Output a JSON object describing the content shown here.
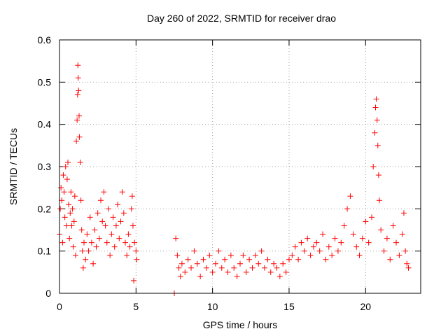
{
  "chart_data": {
    "type": "scatter",
    "title": "Day 260 of 2022, SRMTID for receiver drao",
    "xlabel": "GPS time / hours",
    "ylabel": "SRMTID / TECUs",
    "xlim": [
      0,
      23.6
    ],
    "ylim": [
      0,
      0.6
    ],
    "xticks": [
      0,
      5,
      10,
      15,
      20
    ],
    "xtick_labels": [
      "0",
      "5",
      "10",
      "15",
      "20"
    ],
    "yticks": [
      0,
      0.1,
      0.2,
      0.3,
      0.4,
      0.5,
      0.6
    ],
    "ytick_labels": [
      "0",
      "0.1",
      "0.2",
      "0.3",
      "0.4",
      "0.5",
      "0.6"
    ],
    "grid": true,
    "marker": "+",
    "marker_color": "#ff0000",
    "series": [
      {
        "name": "SRMTID",
        "points": [
          [
            0.0,
            0.14
          ],
          [
            0.05,
            0.2
          ],
          [
            0.1,
            0.25
          ],
          [
            0.15,
            0.22
          ],
          [
            0.2,
            0.12
          ],
          [
            0.25,
            0.28
          ],
          [
            0.3,
            0.24
          ],
          [
            0.35,
            0.18
          ],
          [
            0.4,
            0.3
          ],
          [
            0.45,
            0.16
          ],
          [
            0.5,
            0.27
          ],
          [
            0.55,
            0.31
          ],
          [
            0.6,
            0.21
          ],
          [
            0.65,
            0.13
          ],
          [
            0.7,
            0.19
          ],
          [
            0.75,
            0.24
          ],
          [
            0.8,
            0.16
          ],
          [
            0.85,
            0.2
          ],
          [
            0.9,
            0.11
          ],
          [
            0.95,
            0.17
          ],
          [
            1.0,
            0.23
          ],
          [
            1.05,
            0.09
          ],
          [
            1.1,
            0.36
          ],
          [
            1.15,
            0.41
          ],
          [
            1.18,
            0.47
          ],
          [
            1.2,
            0.54
          ],
          [
            1.22,
            0.51
          ],
          [
            1.25,
            0.48
          ],
          [
            1.28,
            0.42
          ],
          [
            1.3,
            0.37
          ],
          [
            1.35,
            0.31
          ],
          [
            1.4,
            0.22
          ],
          [
            1.45,
            0.15
          ],
          [
            1.5,
            0.1
          ],
          [
            1.55,
            0.06
          ],
          [
            1.6,
            0.12
          ],
          [
            1.7,
            0.08
          ],
          [
            1.8,
            0.14
          ],
          [
            1.9,
            0.1
          ],
          [
            2.0,
            0.18
          ],
          [
            2.1,
            0.12
          ],
          [
            2.2,
            0.07
          ],
          [
            2.3,
            0.15
          ],
          [
            2.4,
            0.11
          ],
          [
            2.5,
            0.19
          ],
          [
            2.6,
            0.13
          ],
          [
            2.7,
            0.22
          ],
          [
            2.8,
            0.17
          ],
          [
            2.9,
            0.24
          ],
          [
            3.0,
            0.16
          ],
          [
            3.1,
            0.12
          ],
          [
            3.2,
            0.2
          ],
          [
            3.3,
            0.09
          ],
          [
            3.4,
            0.14
          ],
          [
            3.5,
            0.18
          ],
          [
            3.6,
            0.11
          ],
          [
            3.7,
            0.16
          ],
          [
            3.8,
            0.21
          ],
          [
            3.9,
            0.13
          ],
          [
            4.0,
            0.17
          ],
          [
            4.1,
            0.24
          ],
          [
            4.2,
            0.19
          ],
          [
            4.3,
            0.12
          ],
          [
            4.4,
            0.09
          ],
          [
            4.5,
            0.14
          ],
          [
            4.6,
            0.11
          ],
          [
            4.7,
            0.2
          ],
          [
            4.75,
            0.23
          ],
          [
            4.8,
            0.16
          ],
          [
            4.85,
            0.03
          ],
          [
            4.9,
            0.12
          ],
          [
            5.0,
            0.1
          ],
          [
            5.05,
            0.08
          ],
          [
            7.5,
            0.0
          ],
          [
            7.6,
            0.13
          ],
          [
            7.7,
            0.09
          ],
          [
            7.8,
            0.06
          ],
          [
            7.9,
            0.04
          ],
          [
            8.0,
            0.07
          ],
          [
            8.2,
            0.05
          ],
          [
            8.4,
            0.08
          ],
          [
            8.6,
            0.06
          ],
          [
            8.8,
            0.1
          ],
          [
            9.0,
            0.07
          ],
          [
            9.2,
            0.04
          ],
          [
            9.4,
            0.08
          ],
          [
            9.6,
            0.06
          ],
          [
            9.8,
            0.09
          ],
          [
            10.0,
            0.05
          ],
          [
            10.2,
            0.07
          ],
          [
            10.4,
            0.1
          ],
          [
            10.6,
            0.06
          ],
          [
            10.8,
            0.08
          ],
          [
            11.0,
            0.05
          ],
          [
            11.2,
            0.09
          ],
          [
            11.4,
            0.06
          ],
          [
            11.6,
            0.04
          ],
          [
            11.8,
            0.07
          ],
          [
            12.0,
            0.09
          ],
          [
            12.2,
            0.05
          ],
          [
            12.4,
            0.08
          ],
          [
            12.6,
            0.06
          ],
          [
            12.8,
            0.09
          ],
          [
            13.0,
            0.07
          ],
          [
            13.2,
            0.1
          ],
          [
            13.4,
            0.06
          ],
          [
            13.6,
            0.08
          ],
          [
            13.8,
            0.05
          ],
          [
            14.0,
            0.07
          ],
          [
            14.2,
            0.06
          ],
          [
            14.4,
            0.04
          ],
          [
            14.6,
            0.07
          ],
          [
            14.8,
            0.05
          ],
          [
            15.0,
            0.08
          ],
          [
            15.2,
            0.09
          ],
          [
            15.4,
            0.11
          ],
          [
            15.6,
            0.08
          ],
          [
            15.8,
            0.12
          ],
          [
            16.0,
            0.1
          ],
          [
            16.2,
            0.13
          ],
          [
            16.4,
            0.09
          ],
          [
            16.6,
            0.11
          ],
          [
            16.8,
            0.12
          ],
          [
            17.0,
            0.1
          ],
          [
            17.2,
            0.14
          ],
          [
            17.4,
            0.08
          ],
          [
            17.6,
            0.11
          ],
          [
            17.8,
            0.09
          ],
          [
            18.0,
            0.13
          ],
          [
            18.2,
            0.1
          ],
          [
            18.4,
            0.12
          ],
          [
            18.6,
            0.16
          ],
          [
            18.8,
            0.2
          ],
          [
            19.0,
            0.23
          ],
          [
            19.2,
            0.14
          ],
          [
            19.4,
            0.11
          ],
          [
            19.6,
            0.09
          ],
          [
            19.8,
            0.13
          ],
          [
            20.0,
            0.17
          ],
          [
            20.2,
            0.12
          ],
          [
            20.4,
            0.18
          ],
          [
            20.5,
            0.3
          ],
          [
            20.6,
            0.38
          ],
          [
            20.65,
            0.44
          ],
          [
            20.7,
            0.46
          ],
          [
            20.75,
            0.41
          ],
          [
            20.8,
            0.35
          ],
          [
            20.85,
            0.28
          ],
          [
            20.9,
            0.22
          ],
          [
            21.0,
            0.15
          ],
          [
            21.2,
            0.1
          ],
          [
            21.4,
            0.13
          ],
          [
            21.6,
            0.08
          ],
          [
            21.8,
            0.16
          ],
          [
            22.0,
            0.12
          ],
          [
            22.2,
            0.09
          ],
          [
            22.4,
            0.14
          ],
          [
            22.5,
            0.19
          ],
          [
            22.6,
            0.1
          ],
          [
            22.7,
            0.07
          ],
          [
            22.8,
            0.06
          ]
        ]
      }
    ]
  }
}
